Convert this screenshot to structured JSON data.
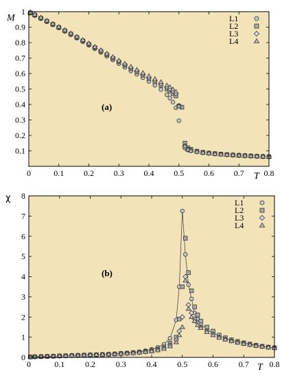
{
  "chart_data": [
    {
      "type": "scatter",
      "panel_label": "(a)",
      "xlabel": "T",
      "ylabel": "M",
      "xlim": [
        0,
        0.8
      ],
      "ylim": [
        0,
        1
      ],
      "xticks": [
        0,
        0.1,
        0.2,
        0.3,
        0.4,
        0.5,
        0.6,
        0.7,
        0.8
      ],
      "yticks": [
        0.1,
        0.2,
        0.3,
        0.4,
        0.5,
        0.6,
        0.7,
        0.8,
        0.9,
        1
      ],
      "xtick_labels": [
        "0",
        "0.1",
        "0.2",
        "0.3",
        "0.4",
        "0.5",
        "0.6",
        "0.7",
        "0.8"
      ],
      "ytick_labels": [
        "0.1",
        "0.2",
        "0.3",
        "0.4",
        "0.5",
        "0.6",
        "0.7",
        "0.8",
        "0.9",
        "1"
      ],
      "background": "#f2e4b8",
      "legend_position": "top-right",
      "series": [
        {
          "name": "L1",
          "marker": "circle",
          "x": [
            0.005,
            0.02,
            0.04,
            0.06,
            0.08,
            0.1,
            0.12,
            0.14,
            0.16,
            0.18,
            0.2,
            0.22,
            0.24,
            0.26,
            0.28,
            0.3,
            0.32,
            0.34,
            0.36,
            0.38,
            0.4,
            0.42,
            0.44,
            0.46,
            0.47,
            0.48,
            0.49,
            0.5,
            0.52,
            0.53,
            0.54,
            0.56,
            0.58,
            0.6,
            0.62,
            0.64,
            0.66,
            0.68,
            0.7,
            0.72,
            0.74,
            0.76,
            0.78,
            0.8
          ],
          "y": [
            0.99,
            0.975,
            0.955,
            0.935,
            0.915,
            0.895,
            0.873,
            0.851,
            0.829,
            0.806,
            0.783,
            0.76,
            0.736,
            0.712,
            0.688,
            0.664,
            0.64,
            0.617,
            0.595,
            0.573,
            0.549,
            0.524,
            0.496,
            0.463,
            0.441,
            0.415,
            0.379,
            0.295,
            0.118,
            0.106,
            0.101,
            0.094,
            0.089,
            0.085,
            0.082,
            0.079,
            0.076,
            0.074,
            0.072,
            0.07,
            0.068,
            0.066,
            0.065,
            0.063
          ]
        },
        {
          "name": "L2",
          "marker": "square",
          "x": [
            0.005,
            0.02,
            0.04,
            0.06,
            0.08,
            0.1,
            0.12,
            0.14,
            0.16,
            0.18,
            0.2,
            0.22,
            0.24,
            0.26,
            0.28,
            0.3,
            0.32,
            0.34,
            0.36,
            0.38,
            0.4,
            0.42,
            0.44,
            0.46,
            0.47,
            0.48,
            0.49,
            0.5,
            0.51,
            0.52,
            0.53,
            0.54,
            0.56,
            0.58,
            0.6,
            0.62,
            0.64,
            0.66,
            0.68,
            0.7,
            0.72,
            0.74,
            0.76,
            0.78,
            0.8
          ],
          "y": [
            0.993,
            0.978,
            0.958,
            0.938,
            0.918,
            0.898,
            0.876,
            0.855,
            0.833,
            0.811,
            0.789,
            0.767,
            0.744,
            0.721,
            0.698,
            0.675,
            0.653,
            0.631,
            0.61,
            0.589,
            0.567,
            0.546,
            0.523,
            0.5,
            0.488,
            0.47,
            0.455,
            0.39,
            0.382,
            0.15,
            0.12,
            0.11,
            0.098,
            0.091,
            0.086,
            0.082,
            0.079,
            0.076,
            0.073,
            0.071,
            0.069,
            0.067,
            0.065,
            0.063,
            0.062
          ]
        },
        {
          "name": "L3",
          "marker": "diamond",
          "x": [
            0.005,
            0.02,
            0.04,
            0.06,
            0.08,
            0.1,
            0.12,
            0.14,
            0.16,
            0.18,
            0.2,
            0.22,
            0.24,
            0.26,
            0.28,
            0.3,
            0.32,
            0.34,
            0.36,
            0.38,
            0.4,
            0.42,
            0.44,
            0.46,
            0.47,
            0.48,
            0.49,
            0.5,
            0.52,
            0.53,
            0.54,
            0.56,
            0.58,
            0.6,
            0.62,
            0.64,
            0.66,
            0.68,
            0.7,
            0.72,
            0.74,
            0.76,
            0.78,
            0.8
          ],
          "y": [
            0.995,
            0.98,
            0.96,
            0.94,
            0.92,
            0.9,
            0.879,
            0.857,
            0.836,
            0.814,
            0.792,
            0.77,
            0.748,
            0.725,
            0.703,
            0.68,
            0.659,
            0.638,
            0.618,
            0.597,
            0.576,
            0.556,
            0.535,
            0.512,
            0.5,
            0.486,
            0.47,
            0.392,
            0.132,
            0.11,
            0.103,
            0.095,
            0.089,
            0.085,
            0.081,
            0.078,
            0.075,
            0.073,
            0.071,
            0.069,
            0.067,
            0.065,
            0.064,
            0.062
          ]
        },
        {
          "name": "L4",
          "marker": "triangle",
          "x": [
            0.005,
            0.02,
            0.04,
            0.06,
            0.08,
            0.1,
            0.12,
            0.14,
            0.16,
            0.18,
            0.2,
            0.22,
            0.24,
            0.26,
            0.28,
            0.3,
            0.32,
            0.34,
            0.36,
            0.38,
            0.4,
            0.42,
            0.44,
            0.46,
            0.47,
            0.48,
            0.49,
            0.5,
            0.52,
            0.53,
            0.54,
            0.56,
            0.58,
            0.6,
            0.62,
            0.64,
            0.66,
            0.68,
            0.7,
            0.72,
            0.74,
            0.76,
            0.78,
            0.8
          ],
          "y": [
            0.997,
            0.982,
            0.962,
            0.942,
            0.922,
            0.902,
            0.881,
            0.86,
            0.838,
            0.817,
            0.795,
            0.773,
            0.751,
            0.729,
            0.707,
            0.684,
            0.664,
            0.644,
            0.624,
            0.604,
            0.584,
            0.565,
            0.545,
            0.523,
            0.512,
            0.497,
            0.482,
            0.388,
            0.13,
            0.108,
            0.101,
            0.094,
            0.088,
            0.084,
            0.08,
            0.077,
            0.075,
            0.073,
            0.071,
            0.069,
            0.067,
            0.065,
            0.063,
            0.062
          ]
        }
      ]
    },
    {
      "type": "scatter",
      "panel_label": "(b)",
      "xlabel": "T",
      "ylabel": "χ",
      "xlim": [
        0,
        0.8
      ],
      "ylim": [
        0,
        8
      ],
      "xticks": [
        0,
        0.1,
        0.2,
        0.3,
        0.4,
        0.5,
        0.6,
        0.7,
        0.8
      ],
      "yticks": [
        0,
        1,
        2,
        3,
        4,
        5,
        6,
        7,
        8
      ],
      "xtick_labels": [
        "0",
        "0.1",
        "0.2",
        "0.3",
        "0.4",
        "0.5",
        "0.6",
        "0.7",
        "0.8"
      ],
      "ytick_labels": [
        "0",
        "1",
        "2",
        "3",
        "4",
        "5",
        "6",
        "7",
        "8"
      ],
      "background": "#f2e4b8",
      "legend_position": "top-right",
      "series": [
        {
          "name": "L1",
          "marker": "circle",
          "line": true,
          "x": [
            0.005,
            0.02,
            0.04,
            0.06,
            0.08,
            0.1,
            0.12,
            0.14,
            0.16,
            0.18,
            0.2,
            0.22,
            0.24,
            0.26,
            0.28,
            0.3,
            0.32,
            0.34,
            0.36,
            0.38,
            0.4,
            0.42,
            0.44,
            0.46,
            0.48,
            0.49,
            0.5,
            0.51,
            0.52,
            0.53,
            0.54,
            0.55,
            0.56,
            0.58,
            0.6,
            0.62,
            0.64,
            0.66,
            0.68,
            0.7,
            0.72,
            0.74,
            0.76,
            0.78,
            0.8
          ],
          "y": [
            0.02,
            0.03,
            0.04,
            0.05,
            0.06,
            0.07,
            0.08,
            0.09,
            0.1,
            0.11,
            0.12,
            0.13,
            0.14,
            0.16,
            0.18,
            0.2,
            0.22,
            0.25,
            0.28,
            0.33,
            0.4,
            0.5,
            0.65,
            0.95,
            1.85,
            3.5,
            7.25,
            5.1,
            3.6,
            2.9,
            2.2,
            1.9,
            1.65,
            1.4,
            1.2,
            1.05,
            0.95,
            0.85,
            0.78,
            0.72,
            0.66,
            0.6,
            0.55,
            0.5,
            0.47
          ]
        },
        {
          "name": "L2",
          "marker": "square",
          "x": [
            0.005,
            0.02,
            0.04,
            0.06,
            0.08,
            0.1,
            0.12,
            0.14,
            0.16,
            0.18,
            0.2,
            0.22,
            0.24,
            0.26,
            0.28,
            0.3,
            0.32,
            0.34,
            0.36,
            0.38,
            0.4,
            0.42,
            0.44,
            0.46,
            0.48,
            0.49,
            0.5,
            0.51,
            0.52,
            0.53,
            0.54,
            0.55,
            0.56,
            0.58,
            0.6,
            0.62,
            0.64,
            0.66,
            0.68,
            0.7,
            0.72,
            0.74,
            0.76,
            0.78,
            0.8
          ],
          "y": [
            0.02,
            0.03,
            0.04,
            0.05,
            0.06,
            0.07,
            0.08,
            0.09,
            0.1,
            0.11,
            0.12,
            0.13,
            0.14,
            0.15,
            0.17,
            0.19,
            0.21,
            0.23,
            0.26,
            0.3,
            0.35,
            0.42,
            0.52,
            0.7,
            1.0,
            1.9,
            3.5,
            5.9,
            4.2,
            3.3,
            2.5,
            2.1,
            1.8,
            1.5,
            1.3,
            1.1,
            0.97,
            0.87,
            0.79,
            0.72,
            0.66,
            0.6,
            0.55,
            0.51,
            0.48
          ]
        },
        {
          "name": "L3",
          "marker": "diamond",
          "x": [
            0.005,
            0.02,
            0.04,
            0.06,
            0.08,
            0.1,
            0.12,
            0.14,
            0.16,
            0.18,
            0.2,
            0.22,
            0.24,
            0.26,
            0.28,
            0.3,
            0.32,
            0.34,
            0.36,
            0.38,
            0.4,
            0.42,
            0.44,
            0.46,
            0.48,
            0.49,
            0.5,
            0.51,
            0.52,
            0.53,
            0.54,
            0.55,
            0.56,
            0.58,
            0.6,
            0.62,
            0.64,
            0.66,
            0.68,
            0.7,
            0.72,
            0.74,
            0.76,
            0.78,
            0.8
          ],
          "y": [
            0.02,
            0.03,
            0.04,
            0.05,
            0.06,
            0.07,
            0.08,
            0.09,
            0.1,
            0.11,
            0.12,
            0.13,
            0.14,
            0.15,
            0.16,
            0.18,
            0.2,
            0.22,
            0.25,
            0.28,
            0.32,
            0.38,
            0.46,
            0.6,
            0.85,
            1.3,
            2.0,
            4.0,
            2.6,
            2.2,
            1.9,
            1.7,
            1.5,
            1.3,
            1.15,
            1.0,
            0.9,
            0.82,
            0.75,
            0.69,
            0.63,
            0.58,
            0.54,
            0.5,
            0.47
          ]
        },
        {
          "name": "L4",
          "marker": "triangle",
          "x": [
            0.005,
            0.02,
            0.04,
            0.06,
            0.08,
            0.1,
            0.12,
            0.14,
            0.16,
            0.18,
            0.2,
            0.22,
            0.24,
            0.26,
            0.28,
            0.3,
            0.32,
            0.34,
            0.36,
            0.38,
            0.4,
            0.42,
            0.44,
            0.46,
            0.48,
            0.49,
            0.5,
            0.51,
            0.52,
            0.53,
            0.54,
            0.55,
            0.56,
            0.58,
            0.6,
            0.62,
            0.64,
            0.66,
            0.68,
            0.7,
            0.72,
            0.74,
            0.76,
            0.78,
            0.8
          ],
          "y": [
            0.02,
            0.03,
            0.04,
            0.05,
            0.06,
            0.07,
            0.08,
            0.09,
            0.1,
            0.11,
            0.12,
            0.13,
            0.14,
            0.15,
            0.16,
            0.18,
            0.19,
            0.21,
            0.24,
            0.27,
            0.3,
            0.35,
            0.42,
            0.55,
            0.75,
            1.1,
            1.5,
            3.8,
            2.4,
            2.0,
            1.8,
            1.6,
            1.45,
            1.25,
            1.1,
            0.97,
            0.88,
            0.8,
            0.73,
            0.67,
            0.62,
            0.57,
            0.53,
            0.49,
            0.46
          ]
        }
      ]
    }
  ]
}
